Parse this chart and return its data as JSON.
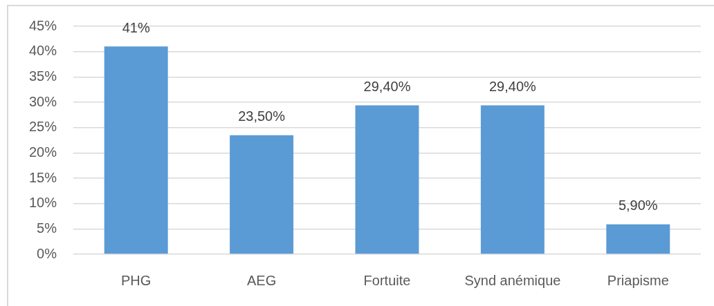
{
  "chart_data": {
    "type": "bar",
    "categories": [
      "PHG",
      "AEG",
      "Fortuite",
      "Synd anémique",
      "Priapisme"
    ],
    "values": [
      41,
      23.5,
      29.4,
      29.4,
      5.9
    ],
    "value_labels": [
      "41%",
      "23,50%",
      "29,40%",
      "29,40%",
      "5,90%"
    ],
    "color": "#5b9bd5",
    "ylim": [
      0,
      45
    ],
    "yticks": [
      {
        "value": 0,
        "label": "0%"
      },
      {
        "value": 5,
        "label": "5%"
      },
      {
        "value": 10,
        "label": "10%"
      },
      {
        "value": 15,
        "label": "15%"
      },
      {
        "value": 20,
        "label": "20%"
      },
      {
        "value": 25,
        "label": "25%"
      },
      {
        "value": 30,
        "label": "30%"
      },
      {
        "value": 35,
        "label": "35%"
      },
      {
        "value": 40,
        "label": "40%"
      },
      {
        "value": 45,
        "label": "45%"
      }
    ],
    "grid": "y"
  }
}
